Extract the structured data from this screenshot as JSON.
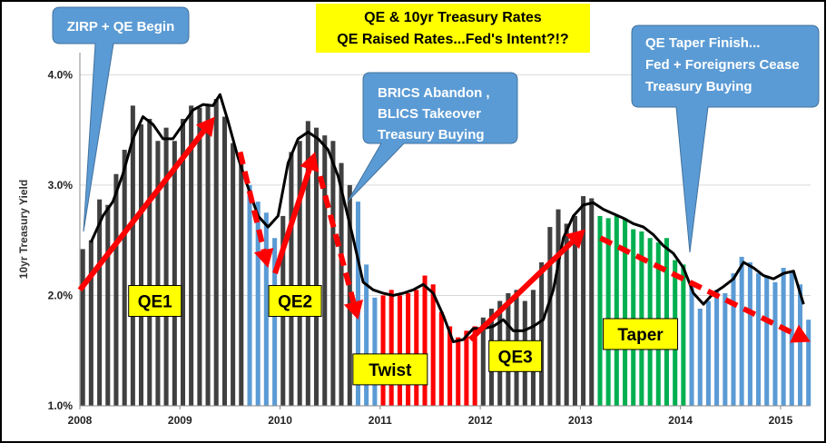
{
  "chart_data": {
    "type": "bar",
    "title": [
      "QE & 10yr Treasury  Rates",
      "QE Raised Rates...Fed's Intent?!?"
    ],
    "ylabel": "10yr Treasury Yield",
    "ylim": [
      1.0,
      4.2
    ],
    "y_ticks": [
      "1.0%",
      "2.0%",
      "3.0%",
      "4.0%"
    ],
    "y_tick_values": [
      1.0,
      2.0,
      3.0,
      4.0
    ],
    "x_tick_labels": [
      "2008",
      "2009",
      "2010",
      "2011",
      "2012",
      "2013",
      "2014",
      "2015"
    ],
    "x_tick_years": [
      2008,
      2009,
      2010,
      2011,
      2012,
      2013,
      2014,
      2015
    ],
    "colors": {
      "qe": "#404040",
      "pause": "#5b9bd5",
      "twist": "#ff0000",
      "taper": "#00b050",
      "line": "#000000",
      "arrow": "#ff0000",
      "callout": "#5b9bd5",
      "label_box": "#ffff00",
      "grid": "#d9d9d9"
    },
    "bars": [
      {
        "date": 2008.0,
        "value": 2.42,
        "phase": "qe"
      },
      {
        "date": 2008.083,
        "value": 2.5,
        "phase": "qe"
      },
      {
        "date": 2008.167,
        "value": 2.87,
        "phase": "qe"
      },
      {
        "date": 2008.25,
        "value": 2.82,
        "phase": "qe"
      },
      {
        "date": 2008.333,
        "value": 3.1,
        "phase": "qe"
      },
      {
        "date": 2008.417,
        "value": 3.32,
        "phase": "qe"
      },
      {
        "date": 2008.5,
        "value": 3.72,
        "phase": "qe"
      },
      {
        "date": 2008.583,
        "value": 3.55,
        "phase": "qe"
      },
      {
        "date": 2008.667,
        "value": 3.6,
        "phase": "qe"
      },
      {
        "date": 2008.75,
        "value": 3.4,
        "phase": "qe"
      },
      {
        "date": 2008.833,
        "value": 3.52,
        "phase": "qe"
      },
      {
        "date": 2008.917,
        "value": 3.4,
        "phase": "qe"
      },
      {
        "date": 2009.0,
        "value": 3.6,
        "phase": "qe"
      },
      {
        "date": 2009.083,
        "value": 3.72,
        "phase": "qe"
      },
      {
        "date": 2009.167,
        "value": 3.7,
        "phase": "qe"
      },
      {
        "date": 2009.25,
        "value": 3.72,
        "phase": "qe"
      },
      {
        "date": 2009.333,
        "value": 3.78,
        "phase": "qe"
      },
      {
        "date": 2009.417,
        "value": 3.62,
        "phase": "qe"
      },
      {
        "date": 2009.5,
        "value": 3.38,
        "phase": "qe"
      },
      {
        "date": 2009.583,
        "value": 3.28,
        "phase": "qe"
      },
      {
        "date": 2009.667,
        "value": 3.0,
        "phase": "pause"
      },
      {
        "date": 2009.75,
        "value": 2.85,
        "phase": "pause"
      },
      {
        "date": 2009.833,
        "value": 2.75,
        "phase": "pause"
      },
      {
        "date": 2009.917,
        "value": 2.52,
        "phase": "pause"
      },
      {
        "date": 2010.0,
        "value": 2.72,
        "phase": "qe"
      },
      {
        "date": 2010.083,
        "value": 3.3,
        "phase": "qe"
      },
      {
        "date": 2010.167,
        "value": 3.4,
        "phase": "qe"
      },
      {
        "date": 2010.25,
        "value": 3.58,
        "phase": "qe"
      },
      {
        "date": 2010.333,
        "value": 3.52,
        "phase": "qe"
      },
      {
        "date": 2010.417,
        "value": 3.45,
        "phase": "qe"
      },
      {
        "date": 2010.5,
        "value": 3.4,
        "phase": "qe"
      },
      {
        "date": 2010.583,
        "value": 3.2,
        "phase": "qe"
      },
      {
        "date": 2010.667,
        "value": 3.0,
        "phase": "qe"
      },
      {
        "date": 2010.75,
        "value": 2.85,
        "phase": "pause"
      },
      {
        "date": 2010.833,
        "value": 2.28,
        "phase": "pause"
      },
      {
        "date": 2010.917,
        "value": 1.98,
        "phase": "pause"
      },
      {
        "date": 2011.0,
        "value": 2.0,
        "phase": "twist"
      },
      {
        "date": 2011.083,
        "value": 2.05,
        "phase": "twist"
      },
      {
        "date": 2011.167,
        "value": 2.0,
        "phase": "twist"
      },
      {
        "date": 2011.25,
        "value": 2.02,
        "phase": "twist"
      },
      {
        "date": 2011.333,
        "value": 2.05,
        "phase": "twist"
      },
      {
        "date": 2011.417,
        "value": 2.18,
        "phase": "twist"
      },
      {
        "date": 2011.5,
        "value": 2.1,
        "phase": "twist"
      },
      {
        "date": 2011.583,
        "value": 1.85,
        "phase": "twist"
      },
      {
        "date": 2011.667,
        "value": 1.72,
        "phase": "twist"
      },
      {
        "date": 2011.75,
        "value": 1.62,
        "phase": "twist"
      },
      {
        "date": 2011.833,
        "value": 1.68,
        "phase": "twist"
      },
      {
        "date": 2011.917,
        "value": 1.72,
        "phase": "twist"
      },
      {
        "date": 2012.0,
        "value": 1.8,
        "phase": "qe"
      },
      {
        "date": 2012.083,
        "value": 1.88,
        "phase": "qe"
      },
      {
        "date": 2012.167,
        "value": 1.95,
        "phase": "qe"
      },
      {
        "date": 2012.25,
        "value": 2.02,
        "phase": "qe"
      },
      {
        "date": 2012.333,
        "value": 2.05,
        "phase": "qe"
      },
      {
        "date": 2012.417,
        "value": 1.95,
        "phase": "qe"
      },
      {
        "date": 2012.5,
        "value": 2.05,
        "phase": "qe"
      },
      {
        "date": 2012.583,
        "value": 2.3,
        "phase": "qe"
      },
      {
        "date": 2012.667,
        "value": 2.62,
        "phase": "qe"
      },
      {
        "date": 2012.75,
        "value": 2.78,
        "phase": "qe"
      },
      {
        "date": 2012.833,
        "value": 2.65,
        "phase": "qe"
      },
      {
        "date": 2012.917,
        "value": 2.72,
        "phase": "qe"
      },
      {
        "date": 2013.0,
        "value": 2.9,
        "phase": "qe"
      },
      {
        "date": 2013.083,
        "value": 2.88,
        "phase": "qe"
      },
      {
        "date": 2013.167,
        "value": 2.72,
        "phase": "taper"
      },
      {
        "date": 2013.25,
        "value": 2.7,
        "phase": "taper"
      },
      {
        "date": 2013.333,
        "value": 2.72,
        "phase": "taper"
      },
      {
        "date": 2013.417,
        "value": 2.7,
        "phase": "taper"
      },
      {
        "date": 2013.5,
        "value": 2.6,
        "phase": "taper"
      },
      {
        "date": 2013.583,
        "value": 2.58,
        "phase": "taper"
      },
      {
        "date": 2013.667,
        "value": 2.52,
        "phase": "taper"
      },
      {
        "date": 2013.75,
        "value": 2.48,
        "phase": "taper"
      },
      {
        "date": 2013.833,
        "value": 2.52,
        "phase": "taper"
      },
      {
        "date": 2013.917,
        "value": 2.32,
        "phase": "taper"
      },
      {
        "date": 2014.0,
        "value": 2.28,
        "phase": "taper"
      },
      {
        "date": 2014.083,
        "value": 2.1,
        "phase": "pause"
      },
      {
        "date": 2014.167,
        "value": 1.88,
        "phase": "pause"
      },
      {
        "date": 2014.25,
        "value": 1.95,
        "phase": "pause"
      },
      {
        "date": 2014.333,
        "value": 2.05,
        "phase": "pause"
      },
      {
        "date": 2014.417,
        "value": 2.02,
        "phase": "pause"
      },
      {
        "date": 2014.5,
        "value": 2.2,
        "phase": "pause"
      },
      {
        "date": 2014.583,
        "value": 2.35,
        "phase": "pause"
      },
      {
        "date": 2014.667,
        "value": 2.3,
        "phase": "pause"
      },
      {
        "date": 2014.75,
        "value": 2.2,
        "phase": "pause"
      },
      {
        "date": 2014.833,
        "value": 2.18,
        "phase": "pause"
      },
      {
        "date": 2014.917,
        "value": 2.12,
        "phase": "pause"
      },
      {
        "date": 2015.0,
        "value": 2.25,
        "phase": "pause"
      },
      {
        "date": 2015.083,
        "value": 2.22,
        "phase": "pause"
      },
      {
        "date": 2015.167,
        "value": 2.1,
        "phase": "pause"
      },
      {
        "date": 2015.25,
        "value": 1.78,
        "phase": "pause"
      }
    ],
    "line": {
      "x": [
        2008.08,
        2008.2,
        2008.3,
        2008.4,
        2008.5,
        2008.6,
        2008.7,
        2008.8,
        2008.9,
        2009.0,
        2009.1,
        2009.2,
        2009.3,
        2009.37,
        2009.45,
        2009.55,
        2009.65,
        2009.75,
        2009.85,
        2009.95,
        2010.05,
        2010.15,
        2010.25,
        2010.35,
        2010.45,
        2010.55,
        2010.62,
        2010.7,
        2010.8,
        2010.9,
        2011.0,
        2011.1,
        2011.2,
        2011.3,
        2011.4,
        2011.5,
        2011.6,
        2011.7,
        2011.8,
        2011.9,
        2012.0,
        2012.1,
        2012.2,
        2012.3,
        2012.4,
        2012.5,
        2012.6,
        2012.7,
        2012.8,
        2012.9,
        2013.0,
        2013.1,
        2013.2,
        2013.3,
        2013.4,
        2013.5,
        2013.6,
        2013.7,
        2013.8,
        2013.9,
        2014.0,
        2014.1,
        2014.2,
        2014.3,
        2014.4,
        2014.5,
        2014.6,
        2014.7,
        2014.8,
        2014.9,
        2015.0,
        2015.1,
        2015.2
      ],
      "y": [
        2.48,
        2.72,
        2.85,
        3.1,
        3.42,
        3.62,
        3.55,
        3.42,
        3.42,
        3.55,
        3.68,
        3.73,
        3.72,
        3.82,
        3.58,
        3.25,
        2.98,
        2.72,
        2.62,
        2.72,
        3.2,
        3.42,
        3.48,
        3.42,
        3.32,
        3.08,
        2.82,
        2.52,
        2.12,
        2.05,
        2.02,
        2.0,
        2.02,
        2.05,
        2.1,
        2.02,
        1.82,
        1.58,
        1.6,
        1.7,
        1.7,
        1.72,
        1.78,
        1.68,
        1.68,
        1.72,
        1.78,
        2.05,
        2.52,
        2.72,
        2.82,
        2.84,
        2.78,
        2.74,
        2.7,
        2.65,
        2.62,
        2.55,
        2.45,
        2.38,
        2.25,
        2.02,
        1.92,
        2.02,
        2.08,
        2.15,
        2.3,
        2.25,
        2.18,
        2.15,
        2.2,
        2.22,
        1.92
      ]
    },
    "arrows": [
      {
        "from": [
          2008.0,
          2.05
        ],
        "to": [
          2009.35,
          3.62
        ],
        "style": "solid"
      },
      {
        "from": [
          2009.6,
          3.3
        ],
        "to": [
          2009.88,
          2.25
        ],
        "style": "dashed"
      },
      {
        "from": [
          2009.95,
          2.2
        ],
        "to": [
          2010.35,
          3.3
        ],
        "style": "solid"
      },
      {
        "from": [
          2010.4,
          3.08
        ],
        "to": [
          2010.78,
          1.78
        ],
        "style": "dashed"
      },
      {
        "from": [
          2011.9,
          1.6
        ],
        "to": [
          2013.05,
          2.6
        ],
        "style": "solid"
      },
      {
        "from": [
          2013.2,
          2.52
        ],
        "to": [
          2015.3,
          1.58
        ],
        "style": "dashed"
      }
    ],
    "period_labels": [
      {
        "text": "QE1",
        "x": 2008.75,
        "y": 1.95
      },
      {
        "text": "QE2",
        "x": 2010.15,
        "y": 1.95
      },
      {
        "text": "Twist",
        "x": 2011.1,
        "y": 1.33
      },
      {
        "text": "QE3",
        "x": 2012.35,
        "y": 1.45
      },
      {
        "text": "Taper",
        "x": 2013.6,
        "y": 1.65
      }
    ],
    "annotations": [
      {
        "text": [
          "ZIRP + QE Begin"
        ]
      },
      {
        "text": [
          "BRICS Abandon ,",
          "BLICS Takeover",
          "Treasury Buying"
        ]
      },
      {
        "text": [
          "QE Taper Finish...",
          "Fed + Foreigners Cease",
          "Treasury Buying"
        ]
      }
    ]
  }
}
